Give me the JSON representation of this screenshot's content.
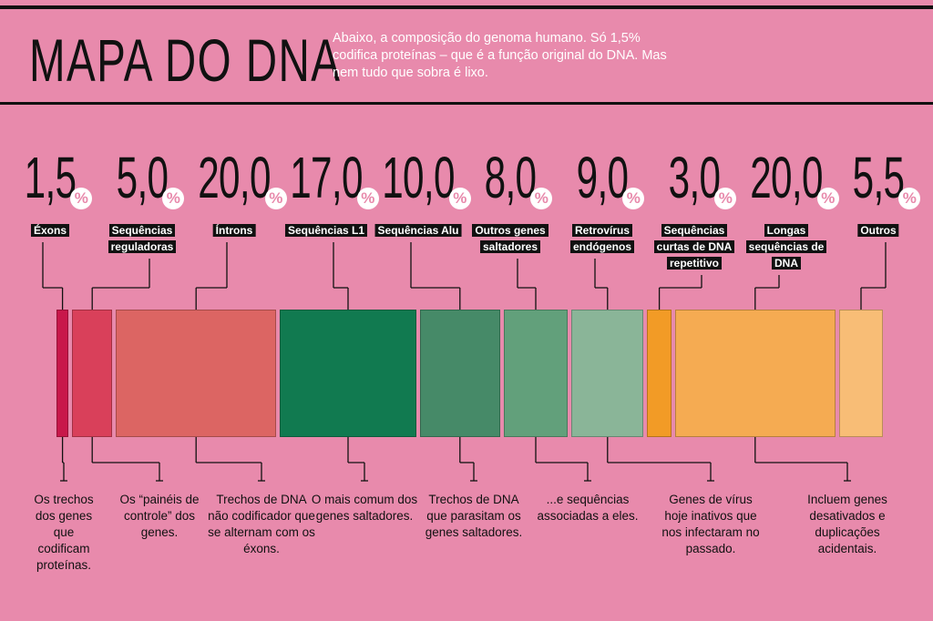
{
  "chart_data": {
    "type": "proportional-bar",
    "title": "MAPA DO DNA",
    "subtitle": "Abaixo, a composição do genoma humano. Só 1,5% codifica proteínas – que é a função original do DNA. Mas nem tudo que sobra é lixo.",
    "unit": "%",
    "categories": [
      "Éxons",
      "Sequências reguladoras",
      "Íntrons",
      "Sequências L1",
      "Sequências Alu",
      "Outros genes saltadores",
      "Retrovírus endógenos",
      "Sequências curtas de DNA repetitivo",
      "Longas sequências de DNA",
      "Outros"
    ],
    "values": [
      1.5,
      5.0,
      20.0,
      17.0,
      10.0,
      8.0,
      9.0,
      3.0,
      20.0,
      5.5
    ],
    "value_labels": [
      "1,5",
      "5,0",
      "20,0",
      "17,0",
      "10,0",
      "8,0",
      "9,0",
      "3,0",
      "20,0",
      "5,5"
    ],
    "colors": [
      "#c8174a",
      "#d9405a",
      "#dc6563",
      "#117a50",
      "#468a68",
      "#62a07b",
      "#8ab598",
      "#f29b26",
      "#f5ab52",
      "#f8bd76"
    ],
    "descriptions": [
      "Os trechos dos genes que codificam proteínas.",
      "Os “painéis de controle” dos genes.",
      "Trechos de DNA não codificador que se alternam com os éxons.",
      "O mais comum dos genes saltadores.",
      "Trechos de DNA que parasitam os genes saltadores.",
      "...e sequências associadas a eles.",
      "Genes de vírus hoje inativos que nos infectaram no passado.",
      null,
      "Incluem genes desativados e duplicações acidentais.",
      null
    ]
  }
}
